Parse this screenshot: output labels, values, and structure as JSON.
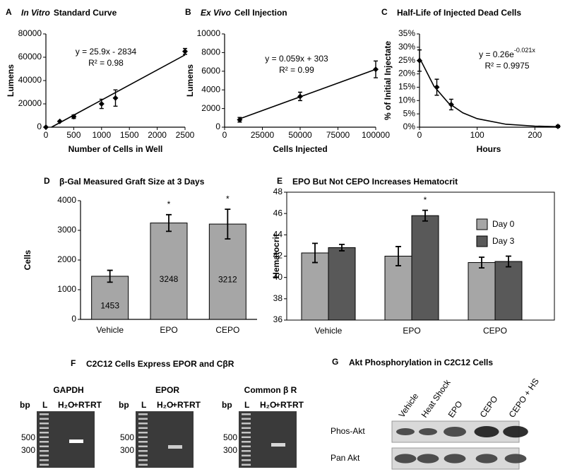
{
  "chart_data": [
    {
      "panel": "A",
      "type": "scatter",
      "title_italic": "In Vitro",
      "title": "Standard Curve",
      "x_label": "Number of Cells in Well",
      "y_label": "Lumens",
      "x": [
        0,
        250,
        500,
        1000,
        1250,
        2500
      ],
      "values": [
        0,
        5000,
        9000,
        20000,
        25000,
        65000
      ],
      "errors": [
        0,
        0,
        1500,
        4000,
        7000,
        2500
      ],
      "fit": {
        "x": [
          100,
          2500
        ],
        "values": [
          0,
          62000
        ]
      },
      "equation": "y = 25.9x - 2834",
      "r_squared": "R² = 0.98",
      "xlim": [
        0,
        2500
      ],
      "xticks": [
        0,
        500,
        1000,
        1500,
        2000,
        2500
      ],
      "ylim": [
        0,
        80000
      ],
      "yticks": [
        0,
        20000,
        40000,
        60000,
        80000
      ],
      "color": "#000000"
    },
    {
      "panel": "B",
      "type": "scatter",
      "title_italic": "Ex Vivo",
      "title": "Cell Injection",
      "x_label": "Cells Injected",
      "y_label": "Lumens",
      "x": [
        10000,
        50000,
        100000
      ],
      "values": [
        800,
        3300,
        6200
      ],
      "errors": [
        250,
        450,
        900
      ],
      "fit": {
        "x": [
          10000,
          100000
        ],
        "values": [
          900,
          6200
        ]
      },
      "equation": "y = 0.059x + 303",
      "r_squared": "R² = 0.99",
      "xlim": [
        0,
        100000
      ],
      "xticks": [
        0,
        25000,
        50000,
        75000,
        100000
      ],
      "ylim": [
        0,
        10000
      ],
      "yticks": [
        0,
        2000,
        4000,
        6000,
        8000,
        10000
      ],
      "color": "#000000"
    },
    {
      "panel": "C",
      "type": "scatter",
      "title": "Half-Life of Injected Dead Cells",
      "x_label": "Hours",
      "y_label": "% of Initial Injectate",
      "x": [
        0,
        30,
        55,
        240
      ],
      "values": [
        25,
        15,
        8.5,
        0.3
      ],
      "errors": [
        4,
        3,
        2,
        0.4
      ],
      "fit": {
        "x": [
          0,
          25,
          50,
          75,
          100,
          150,
          200,
          240
        ],
        "values": [
          26,
          15.4,
          9.1,
          5.4,
          3.2,
          1.1,
          0.4,
          0.2
        ]
      },
      "equation": "y = 0.26e",
      "equation_exponent": "-0.021x",
      "r_squared": "R² = 0.9975",
      "xlim": [
        0,
        240
      ],
      "xticks": [
        0,
        100,
        200
      ],
      "ylim": [
        0,
        35
      ],
      "yticks": [
        {
          "value": 0,
          "label": "0%"
        },
        {
          "value": 5,
          "label": "5%"
        },
        {
          "value": 10,
          "label": "10%"
        },
        {
          "value": 15,
          "label": "15%"
        },
        {
          "value": 20,
          "label": "20%"
        },
        {
          "value": 25,
          "label": "25%"
        },
        {
          "value": 30,
          "label": "30%"
        },
        {
          "value": 35,
          "label": "35%"
        }
      ],
      "color": "#000000"
    },
    {
      "panel": "D",
      "type": "bar",
      "title": "β-Gal Measured Graft Size at 3 Days",
      "y_label": "Cells",
      "categories": [
        "Vehicle",
        "EPO",
        "CEPO"
      ],
      "values": [
        1453,
        3248,
        3212
      ],
      "errors": [
        200,
        280,
        500
      ],
      "annotations": [
        null,
        "*",
        "*"
      ],
      "data_labels": true,
      "color": "#a6a6a6",
      "ylim": [
        0,
        4000
      ],
      "yticks": [
        0,
        1000,
        2000,
        3000,
        4000
      ]
    },
    {
      "panel": "E",
      "type": "bar",
      "title": "EPO But Not CEPO Increases Hematocrit",
      "y_label": "Hematocrit",
      "categories": [
        "Vehicle",
        "EPO",
        "CEPO"
      ],
      "series": [
        {
          "name": "Day 0",
          "color": "#a6a6a6",
          "values": [
            42.3,
            42,
            41.4
          ],
          "errors": [
            0.9,
            0.9,
            0.5
          ]
        },
        {
          "name": "Day 3",
          "color": "#595959",
          "values": [
            42.8,
            45.8,
            41.5
          ],
          "errors": [
            0.3,
            0.5,
            0.5
          ],
          "annotations": [
            null,
            "*",
            null
          ]
        }
      ],
      "legend": "upper right",
      "ylim": [
        36,
        48
      ],
      "yticks": [
        36,
        38,
        40,
        42,
        44,
        46,
        48
      ]
    }
  ],
  "gel_panel": {
    "panel": "F",
    "title": "C2C12 Cells Express EPOR and CβR",
    "gels": [
      {
        "title": "GAPDH"
      },
      {
        "title": "EPOR"
      },
      {
        "title": "Common β R"
      }
    ],
    "lane_labels": [
      "bp",
      "L",
      "H₂O",
      "+RT",
      "-RT"
    ],
    "markers": [
      "500",
      "300"
    ]
  },
  "blot_panel": {
    "panel": "G",
    "title": "Akt Phosphorylation in C2C12 Cells",
    "lanes": [
      "Vehicle",
      "Heat Shock",
      "EPO",
      "CEPO",
      "CEPO + HS"
    ],
    "rows": [
      "Phos-Akt",
      "Pan Akt"
    ]
  }
}
